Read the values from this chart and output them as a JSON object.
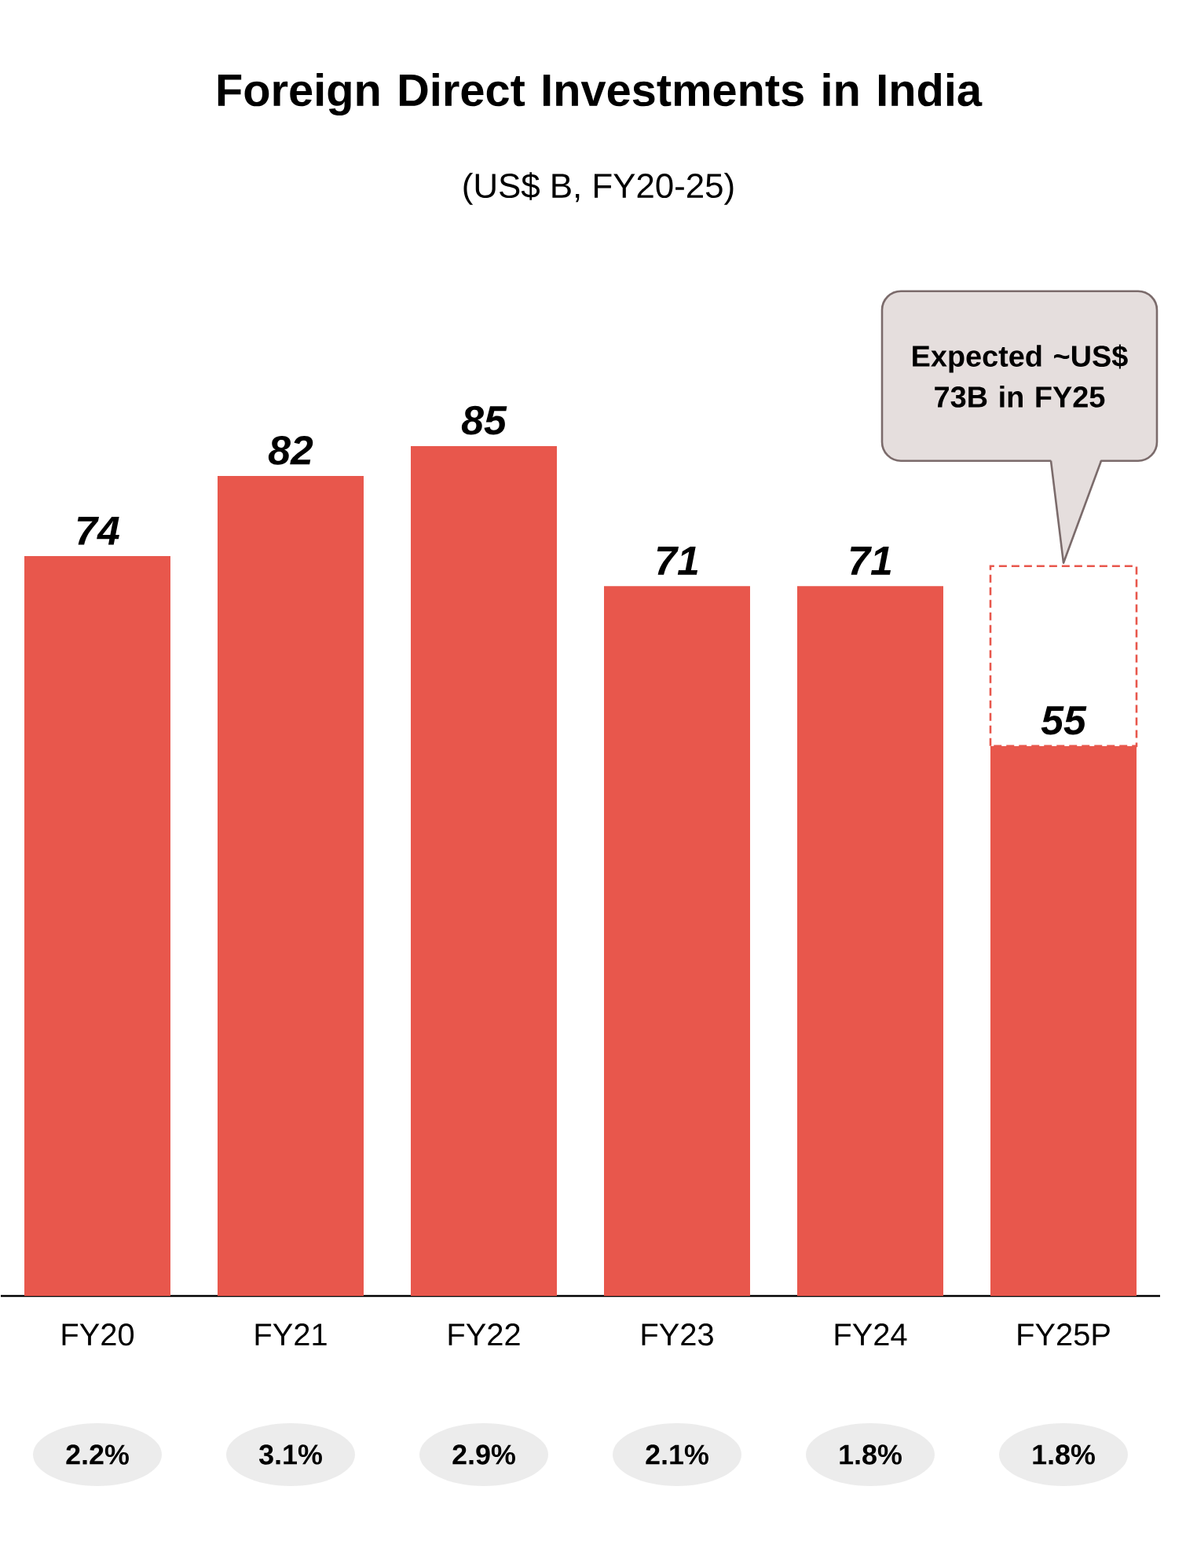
{
  "chart_data": {
    "type": "bar",
    "title": "Foreign Direct Investments in India",
    "subtitle": "(US$ B, FY20-25)",
    "categories": [
      "FY20",
      "FY21",
      "FY22",
      "FY23",
      "FY24",
      "FY25P"
    ],
    "stacked": true,
    "series": [
      {
        "color": "#e8574c",
        "values": [
          74,
          82,
          85,
          71,
          71,
          55
        ],
        "value_labels": [
          "74",
          "82",
          "85",
          "71",
          "71",
          "55"
        ]
      },
      {
        "color": "#e8574c",
        "line_style": "dashed",
        "values": [
          null,
          null,
          null,
          null,
          null,
          18
        ],
        "value_labels": [
          null,
          null,
          null,
          null,
          null,
          null
        ]
      }
    ],
    "annotations": [
      "Expected ~US$ 73B in FY25",
      "2.2%",
      "3.1%",
      "2.9%",
      "2.1%",
      "1.8%",
      "1.8%"
    ]
  }
}
